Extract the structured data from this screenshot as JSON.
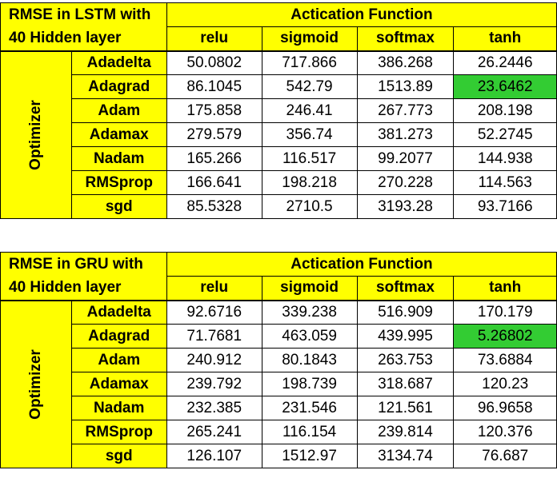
{
  "tables": [
    {
      "title_line1": "RMSE in LSTM with",
      "title_line2": "40 Hidden layer",
      "group_header": "Actication Function",
      "columns": [
        "relu",
        "sigmoid",
        "softmax",
        "tanh"
      ],
      "row_group_label": "Optimizer",
      "rows": [
        {
          "name": "Adadelta",
          "values": [
            "50.0802",
            "717.866",
            "386.268",
            "26.2446"
          ]
        },
        {
          "name": "Adagrad",
          "values": [
            "86.1045",
            "542.79",
            "1513.89",
            "23.6462"
          ]
        },
        {
          "name": "Adam",
          "values": [
            "175.858",
            "246.41",
            "267.773",
            "208.198"
          ]
        },
        {
          "name": "Adamax",
          "values": [
            "279.579",
            "356.74",
            "381.273",
            "52.2745"
          ]
        },
        {
          "name": "Nadam",
          "values": [
            "165.266",
            "116.517",
            "99.2077",
            "144.938"
          ]
        },
        {
          "name": "RMSprop",
          "values": [
            "166.641",
            "198.218",
            "270.228",
            "114.563"
          ]
        },
        {
          "name": "sgd",
          "values": [
            "85.5328",
            "2710.5",
            "3193.28",
            "93.7166"
          ]
        }
      ],
      "highlight_color": "#33cc33"
    },
    {
      "title_line1": "RMSE in GRU with",
      "title_line2": "40 Hidden layer",
      "group_header": "Actication Function",
      "columns": [
        "relu",
        "sigmoid",
        "softmax",
        "tanh"
      ],
      "row_group_label": "Optimizer",
      "rows": [
        {
          "name": "Adadelta",
          "values": [
            "92.6716",
            "339.238",
            "516.909",
            "170.179"
          ]
        },
        {
          "name": "Adagrad",
          "values": [
            "71.7681",
            "463.059",
            "439.995",
            "5.26802"
          ]
        },
        {
          "name": "Adam",
          "values": [
            "240.912",
            "80.1843",
            "263.753",
            "73.6884"
          ]
        },
        {
          "name": "Adamax",
          "values": [
            "239.792",
            "198.739",
            "318.687",
            "120.23"
          ]
        },
        {
          "name": "Nadam",
          "values": [
            "232.385",
            "231.546",
            "121.561",
            "96.9658"
          ]
        },
        {
          "name": "RMSprop",
          "values": [
            "265.241",
            "116.154",
            "239.814",
            "120.376"
          ]
        },
        {
          "name": "sgd",
          "values": [
            "126.107",
            "1512.97",
            "3134.74",
            "76.687"
          ]
        }
      ],
      "highlight_color": "#33cc33"
    }
  ],
  "header_color": "#ffff00"
}
